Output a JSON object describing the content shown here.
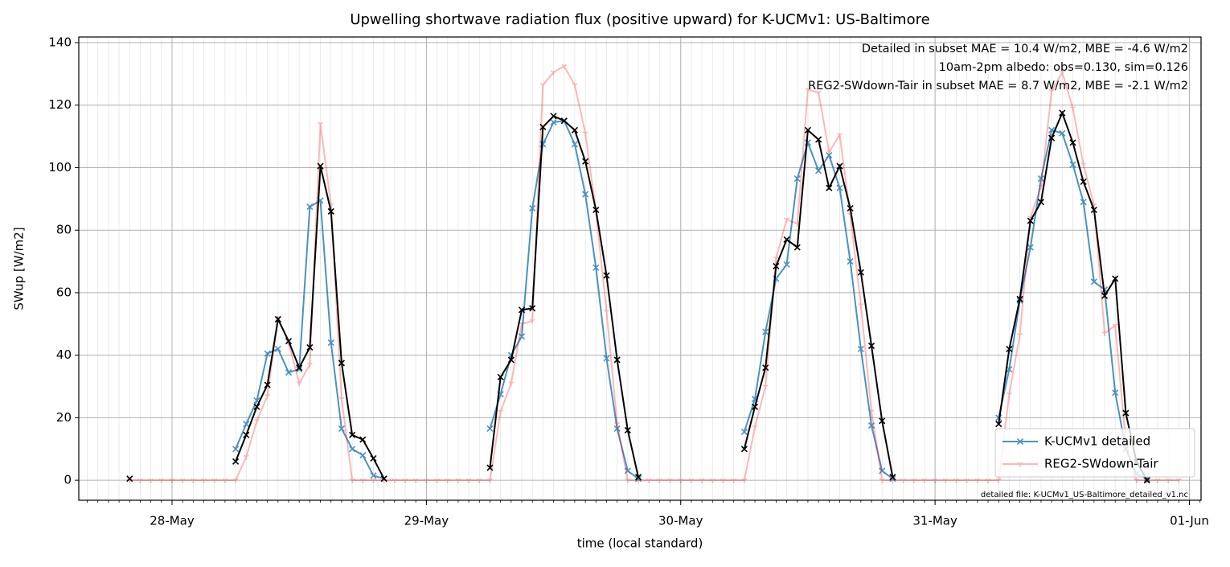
{
  "chart_data": {
    "type": "line",
    "title": "Upwelling shortwave radiation flux (positive upward) for K-UCMv1: US-Baltimore",
    "xlabel": "time (local standard)",
    "ylabel": "SWup [W/m2]",
    "annotations": [
      {
        "text": "Detailed in subset MAE = 10.4 W/m2, MBE = -4.6 W/m2",
        "color": "#1f77b4"
      },
      {
        "text": "10am-2pm albedo: obs=0.130, sim=0.126",
        "color": "#000000"
      },
      {
        "text": "REG2-SWdown-Tair in subset MAE = 8.7 W/m2, MBE = -2.1 W/m2",
        "color": "#ff0000"
      }
    ],
    "footnote": "detailed file: K-UCMv1_US-Baltimore_detailed_v1.nc",
    "x": [
      -4,
      -3,
      -2,
      -1,
      0,
      1,
      2,
      3,
      4,
      5,
      6,
      7,
      8,
      9,
      10,
      11,
      12,
      13,
      14,
      15,
      16,
      17,
      18,
      19,
      20,
      21,
      22,
      23,
      24,
      25,
      26,
      27,
      28,
      29,
      30,
      31,
      32,
      33,
      34,
      35,
      36,
      37,
      38,
      39,
      40,
      41,
      42,
      43,
      44,
      45,
      46,
      47,
      48,
      49,
      50,
      51,
      52,
      53,
      54,
      55,
      56,
      57,
      58,
      59,
      60,
      61,
      62,
      63,
      64,
      65,
      66,
      67,
      68,
      69,
      70,
      71,
      72,
      73,
      74,
      75,
      76,
      77,
      78,
      79,
      80,
      81,
      82,
      83,
      84,
      85,
      86,
      87,
      88,
      89,
      90,
      91,
      92,
      93,
      94,
      95
    ],
    "series": [
      {
        "name": "K-UCMv1 detailed",
        "color": "#1f77b4",
        "alpha": 0.8,
        "marker": "x",
        "values": [
          null,
          null,
          null,
          null,
          null,
          null,
          null,
          null,
          null,
          null,
          10,
          18,
          25.5,
          40.5,
          42,
          34.5,
          35.5,
          87.5,
          89.5,
          44,
          16.5,
          10,
          8,
          1.5,
          0.5,
          null,
          null,
          null,
          null,
          null,
          null,
          null,
          null,
          null,
          16.5,
          27.5,
          40,
          46,
          87,
          107.5,
          114.5,
          115,
          107.5,
          91.5,
          68,
          39,
          16.5,
          3,
          0.5,
          null,
          null,
          null,
          null,
          null,
          null,
          null,
          null,
          null,
          15.5,
          26,
          47.5,
          64.5,
          69,
          96.5,
          108,
          99,
          104,
          93.5,
          70,
          42,
          17.5,
          3,
          0.5,
          null,
          null,
          null,
          null,
          null,
          null,
          null,
          null,
          null,
          20,
          35.5,
          57.5,
          74.5,
          96.5,
          112,
          111,
          101,
          89,
          63.5,
          61,
          28,
          10,
          2,
          0.5,
          null,
          null,
          null
        ]
      },
      {
        "name": "REG2-SWdown-Tair",
        "color": "#ff0000",
        "alpha": 0.28,
        "marker": "tri",
        "values": [
          0,
          0,
          0,
          0,
          0,
          0,
          0,
          0,
          0,
          0,
          0,
          7.5,
          19,
          27,
          52,
          44,
          31,
          37,
          114,
          88,
          26,
          0,
          0,
          0,
          0,
          0,
          0,
          0,
          0,
          0,
          0,
          0,
          0,
          0,
          0,
          22,
          31,
          50,
          51,
          126.5,
          130.5,
          132.5,
          126.5,
          111,
          86,
          54,
          18,
          0,
          0,
          0,
          0,
          0,
          0,
          0,
          0,
          0,
          0,
          0,
          0,
          17,
          30,
          71,
          83.5,
          82,
          125,
          124,
          105,
          110.5,
          85,
          56,
          22,
          0,
          0,
          0,
          0,
          0,
          0,
          0,
          0,
          0,
          0,
          0,
          0,
          27.5,
          46.5,
          84,
          94,
          124.5,
          130.5,
          119,
          101,
          88,
          47,
          49.5,
          12,
          0,
          0,
          0,
          0,
          0
        ]
      },
      {
        "color": "#000000",
        "alpha": 1,
        "marker": "x",
        "values": [
          0.5,
          null,
          null,
          null,
          null,
          null,
          null,
          null,
          null,
          null,
          6,
          14.5,
          23.5,
          30.5,
          51.5,
          44.5,
          36,
          42.5,
          100.5,
          86,
          37.5,
          14.5,
          13,
          7,
          0.5,
          null,
          null,
          null,
          null,
          null,
          null,
          null,
          null,
          null,
          4,
          33,
          38.5,
          54.5,
          55,
          113,
          116.5,
          115,
          112,
          102,
          86.5,
          65.5,
          38.5,
          16,
          1,
          null,
          null,
          null,
          null,
          null,
          null,
          null,
          null,
          null,
          10,
          23.5,
          36,
          68.5,
          77,
          74.5,
          112,
          109,
          93.5,
          100.5,
          87,
          66.5,
          43,
          19,
          1,
          null,
          null,
          null,
          null,
          null,
          null,
          null,
          null,
          null,
          18,
          42,
          58,
          83,
          89,
          109.5,
          117.5,
          108,
          95.5,
          86.5,
          59,
          64.5,
          21.5,
          6,
          0,
          null,
          null,
          null
        ]
      }
    ],
    "xlim": [
      -8.8,
      97.1
    ],
    "xticks": [
      {
        "value": 0,
        "label": "28-May"
      },
      {
        "value": 24,
        "label": "29-May"
      },
      {
        "value": 48,
        "label": "30-May"
      },
      {
        "value": 72,
        "label": "31-May"
      },
      {
        "value": 96,
        "label": "01-Jun"
      }
    ],
    "ylim": [
      -6.4,
      141.8
    ],
    "yticks": [
      0,
      20,
      40,
      60,
      80,
      100,
      120,
      140
    ],
    "grid": true,
    "legend": "lower right"
  }
}
